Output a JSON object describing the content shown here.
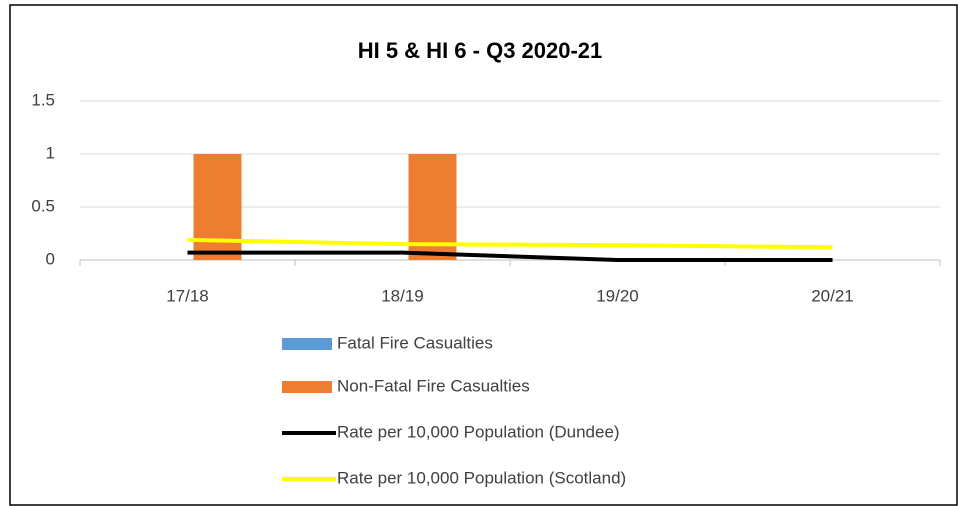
{
  "chart_data": {
    "type": "combo",
    "title": "HI 5 & HI 6 - Q3 2020-21",
    "categories": [
      "17/18",
      "18/19",
      "19/20",
      "20/21"
    ],
    "series": [
      {
        "name": "Fatal Fire Casualties",
        "type": "bar",
        "color": "#5b9bd5",
        "values": [
          0,
          0,
          0,
          0
        ]
      },
      {
        "name": "Non-Fatal Fire Casualties",
        "type": "bar",
        "color": "#ed7d31",
        "values": [
          1,
          1,
          0,
          0
        ]
      },
      {
        "name": "Rate per 10,000 Population (Dundee)",
        "type": "line",
        "color": "#000000",
        "values": [
          0.07,
          0.07,
          0,
          0
        ]
      },
      {
        "name": "Rate per 10,000 Population (Scotland)",
        "type": "line",
        "color": "#ffff00",
        "values": [
          0.19,
          0.15,
          0.14,
          0.12
        ]
      }
    ],
    "ylim": [
      0,
      1.5
    ],
    "yticks": [
      0,
      {
        "value": 0.5,
        "label": "0.5"
      },
      1,
      {
        "value": 1.5,
        "label": "1.5"
      }
    ],
    "grid": true
  }
}
